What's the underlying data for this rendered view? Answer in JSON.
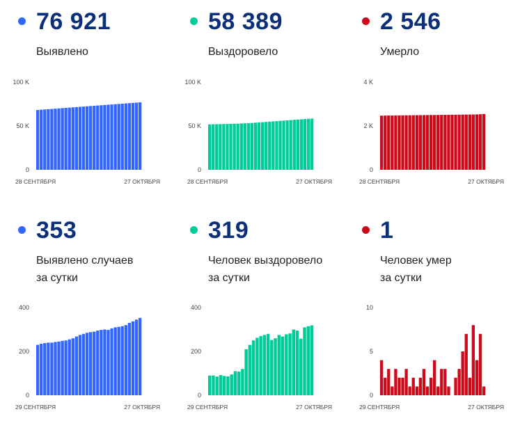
{
  "colors": {
    "blue": "#3366ff",
    "teal": "#00cc99",
    "red": "#cc0a1a",
    "number": "#0b2f78"
  },
  "panels": [
    {
      "value": "76 921",
      "label_lines": [
        "Выявлено"
      ],
      "color": "#3366ff",
      "dot_icon": "bullet-dot-icon",
      "chart_data": {
        "type": "bar",
        "x_start_label": "28 СЕНТЯБРЯ",
        "x_end_label": "27 ОКТЯБРЯ",
        "yticks": [
          {
            "v": 0,
            "t": "0"
          },
          {
            "v": 50000,
            "t": "50 K"
          },
          {
            "v": 100000,
            "t": "100 K"
          }
        ],
        "ylim": [
          0,
          100000
        ],
        "values": [
          68200,
          68500,
          68800,
          69100,
          69400,
          69700,
          70000,
          70300,
          70600,
          70900,
          71200,
          71500,
          71800,
          72100,
          72400,
          72700,
          73000,
          73300,
          73600,
          73900,
          74200,
          74500,
          74800,
          75100,
          75400,
          75700,
          76000,
          76300,
          76600,
          76921
        ]
      }
    },
    {
      "value": "58 389",
      "label_lines": [
        "Выздоровело"
      ],
      "color": "#00cc99",
      "dot_icon": "bullet-dot-icon",
      "chart_data": {
        "type": "bar",
        "x_start_label": "28 СЕНТЯБРЯ",
        "x_end_label": "27 ОКТЯБРЯ",
        "yticks": [
          {
            "v": 0,
            "t": "0"
          },
          {
            "v": 50000,
            "t": "50 K"
          },
          {
            "v": 100000,
            "t": "100 K"
          }
        ],
        "ylim": [
          0,
          100000
        ],
        "values": [
          51800,
          51900,
          52000,
          52100,
          52200,
          52300,
          52400,
          52500,
          52600,
          52800,
          53000,
          53200,
          53400,
          53700,
          54000,
          54300,
          54600,
          54900,
          55200,
          55500,
          55800,
          56100,
          56400,
          56700,
          57000,
          57300,
          57600,
          57900,
          58200,
          58389
        ]
      }
    },
    {
      "value": "2 546",
      "label_lines": [
        "Умерло"
      ],
      "color": "#cc0a1a",
      "dot_icon": "bullet-dot-icon",
      "chart_data": {
        "type": "bar",
        "x_start_label": "28 СЕНТЯБРЯ",
        "x_end_label": "27 ОКТЯБРЯ",
        "yticks": [
          {
            "v": 0,
            "t": "0"
          },
          {
            "v": 2000,
            "t": "2 K"
          },
          {
            "v": 4000,
            "t": "4 K"
          }
        ],
        "ylim": [
          0,
          4000
        ],
        "values": [
          2470,
          2473,
          2475,
          2477,
          2479,
          2481,
          2483,
          2485,
          2487,
          2489,
          2491,
          2493,
          2495,
          2497,
          2499,
          2501,
          2503,
          2505,
          2507,
          2509,
          2511,
          2513,
          2515,
          2517,
          2519,
          2521,
          2523,
          2527,
          2535,
          2546
        ]
      }
    },
    {
      "value": "353",
      "label_lines": [
        "Выявлено случаев",
        "за сутки"
      ],
      "color": "#3366ff",
      "dot_icon": "bullet-dot-icon",
      "chart_data": {
        "type": "bar",
        "x_start_label": "29 СЕНТЯБРЯ",
        "x_end_label": "27 ОКТЯБРЯ",
        "yticks": [
          {
            "v": 0,
            "t": "0"
          },
          {
            "v": 200,
            "t": "200"
          },
          {
            "v": 400,
            "t": "400"
          }
        ],
        "ylim": [
          0,
          400
        ],
        "values": [
          230,
          235,
          238,
          240,
          240,
          243,
          245,
          248,
          250,
          255,
          260,
          268,
          275,
          280,
          285,
          288,
          290,
          295,
          298,
          300,
          298,
          305,
          310,
          312,
          315,
          320,
          330,
          337,
          345,
          353
        ]
      }
    },
    {
      "value": "319",
      "label_lines": [
        "Человек выздоровело",
        "за сутки"
      ],
      "color": "#00cc99",
      "dot_icon": "bullet-dot-icon",
      "chart_data": {
        "type": "bar",
        "x_start_label": "29 СЕНТЯБРЯ",
        "x_end_label": "27 ОКТЯБРЯ",
        "yticks": [
          {
            "v": 0,
            "t": "0"
          },
          {
            "v": 200,
            "t": "200"
          },
          {
            "v": 400,
            "t": "400"
          }
        ],
        "ylim": [
          0,
          400
        ],
        "values": [
          90,
          90,
          85,
          92,
          88,
          86,
          95,
          110,
          108,
          120,
          210,
          230,
          250,
          262,
          270,
          275,
          280,
          252,
          260,
          275,
          268,
          278,
          282,
          300,
          295,
          258,
          310,
          315,
          319
        ]
      }
    },
    {
      "value": "1",
      "label_lines": [
        "Человек умер",
        "за сутки"
      ],
      "color": "#cc0a1a",
      "dot_icon": "bullet-dot-icon",
      "chart_data": {
        "type": "bar",
        "x_start_label": "29 СЕНТЯБРЯ",
        "x_end_label": "27 ОКТЯБРЯ",
        "yticks": [
          {
            "v": 0,
            "t": "0"
          },
          {
            "v": 5,
            "t": "5"
          },
          {
            "v": 10,
            "t": "10"
          }
        ],
        "ylim": [
          0,
          10
        ],
        "values": [
          4,
          2,
          3,
          1,
          3,
          2,
          2,
          3,
          1,
          2,
          1,
          2,
          3,
          1,
          2,
          4,
          1,
          3,
          3,
          1,
          0,
          2,
          3,
          5,
          7,
          2,
          8,
          4,
          7,
          1
        ]
      }
    }
  ]
}
